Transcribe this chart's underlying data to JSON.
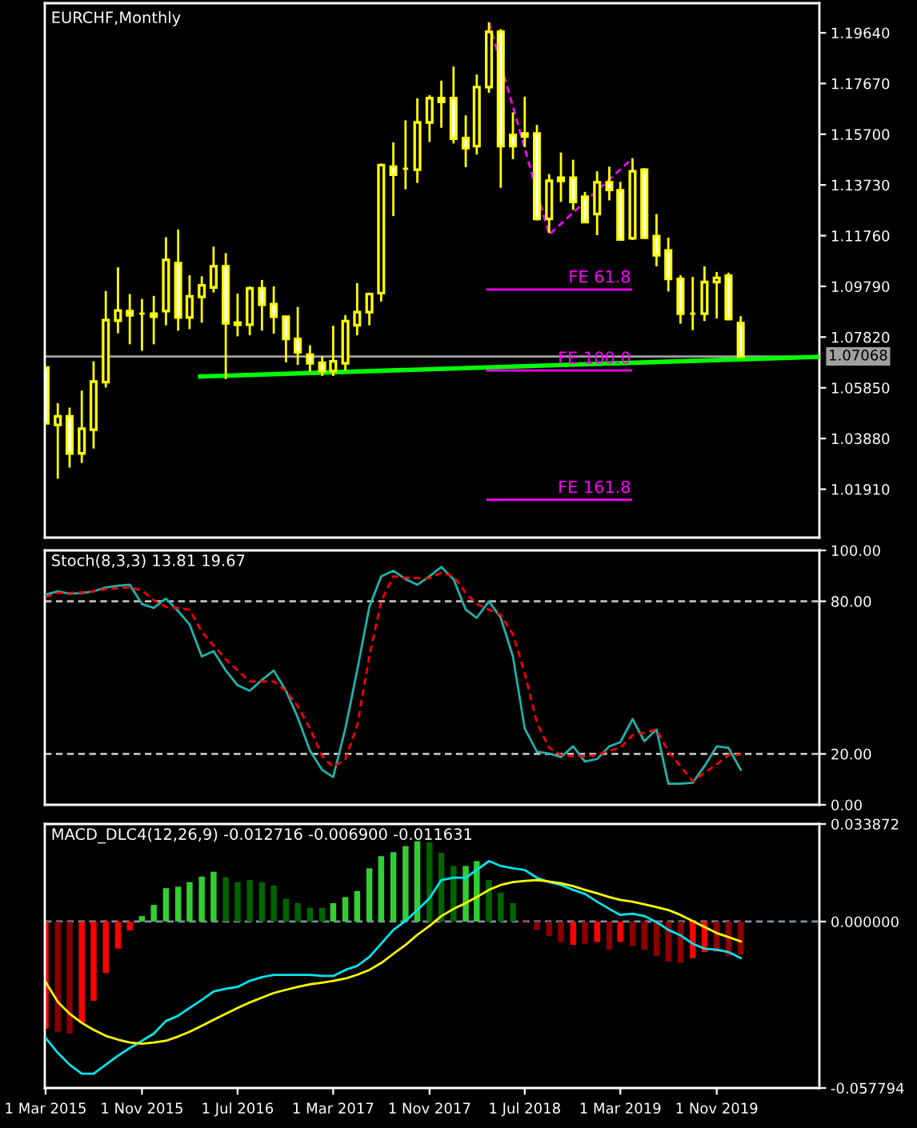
{
  "chart_data": [
    {
      "type": "candlestick",
      "title": "EURCHF,Monthly",
      "color": "#ffff00",
      "tick_labels": "y",
      "grid": false,
      "legend": false,
      "x": [
        "2015-03",
        "2015-04",
        "2015-05",
        "2015-06",
        "2015-07",
        "2015-08",
        "2015-09",
        "2015-10",
        "2015-11",
        "2015-12",
        "2016-01",
        "2016-02",
        "2016-03",
        "2016-04",
        "2016-05",
        "2016-06",
        "2016-07",
        "2016-08",
        "2016-09",
        "2016-10",
        "2016-11",
        "2016-12",
        "2017-01",
        "2017-02",
        "2017-03",
        "2017-04",
        "2017-05",
        "2017-06",
        "2017-07",
        "2017-08",
        "2017-09",
        "2017-10",
        "2017-11",
        "2017-12",
        "2018-01",
        "2018-02",
        "2018-03",
        "2018-04",
        "2018-05",
        "2018-06",
        "2018-07",
        "2018-08",
        "2018-09",
        "2018-10",
        "2018-11",
        "2018-12",
        "2019-01",
        "2019-02",
        "2019-03",
        "2019-04",
        "2019-05",
        "2019-06",
        "2019-07",
        "2019-08",
        "2019-09",
        "2019-10",
        "2019-11",
        "2019-12",
        "2020-01"
      ],
      "ohlc": [
        [
          1.0664,
          1.0664,
          1.0447,
          1.0447
        ],
        [
          1.0441,
          1.0525,
          1.0232,
          1.0474
        ],
        [
          1.0474,
          1.0508,
          1.0275,
          1.033
        ],
        [
          1.033,
          1.0574,
          1.0293,
          1.0426
        ],
        [
          1.0422,
          1.0688,
          1.0349,
          1.0609
        ],
        [
          1.0607,
          1.0961,
          1.0586,
          1.0848
        ],
        [
          1.0846,
          1.1053,
          1.0797,
          1.0885
        ],
        [
          1.0883,
          1.0949,
          1.0754,
          1.0867
        ],
        [
          1.0873,
          1.093,
          1.0729,
          1.0873
        ],
        [
          1.0873,
          1.0942,
          1.0754,
          1.0861
        ],
        [
          1.0883,
          1.117,
          1.0828,
          1.1082
        ],
        [
          1.1069,
          1.12,
          1.0807,
          1.0858
        ],
        [
          1.0858,
          1.1022,
          1.0813,
          1.094
        ],
        [
          1.0938,
          1.1018,
          1.0838,
          1.0983
        ],
        [
          1.0975,
          1.1133,
          1.0955,
          1.1057
        ],
        [
          1.1057,
          1.1108,
          1.0619,
          1.0836
        ],
        [
          1.0838,
          1.0951,
          1.0785,
          1.083
        ],
        [
          1.083,
          1.0979,
          1.0789,
          1.0971
        ],
        [
          1.0971,
          1.1004,
          1.0807,
          1.0908
        ],
        [
          1.091,
          1.0979,
          1.0795,
          1.0861
        ],
        [
          1.0861,
          1.0861,
          1.0684,
          1.0775
        ],
        [
          1.0775,
          1.0899,
          1.0674,
          1.0723
        ],
        [
          1.0713,
          1.075,
          1.0646,
          1.068
        ],
        [
          1.0682,
          1.0707,
          1.0631,
          1.065
        ],
        [
          1.065,
          1.0826,
          1.0631,
          1.0688
        ],
        [
          1.068,
          1.0867,
          1.0652,
          1.0844
        ],
        [
          1.0828,
          1.0992,
          1.0789,
          1.0879
        ],
        [
          1.0879,
          1.0955,
          1.0828,
          1.0949
        ],
        [
          1.0953,
          1.1456,
          1.092,
          1.145
        ],
        [
          1.1444,
          1.1538,
          1.1252,
          1.1413
        ],
        [
          1.1436,
          1.1624,
          1.1356,
          1.1436
        ],
        [
          1.1432,
          1.171,
          1.1381,
          1.1616
        ],
        [
          1.1616,
          1.1722,
          1.154,
          1.171
        ],
        [
          1.171,
          1.1778,
          1.1595,
          1.1696
        ],
        [
          1.171,
          1.1833,
          1.1534,
          1.1553
        ],
        [
          1.1555,
          1.1643,
          1.1442,
          1.1516
        ],
        [
          1.1524,
          1.1802,
          1.1491,
          1.1753
        ],
        [
          1.1753,
          1.2005,
          1.1731,
          1.1968
        ],
        [
          1.1968,
          1.1978,
          1.1362,
          1.1524
        ],
        [
          1.1567,
          1.1655,
          1.1473,
          1.1524
        ],
        [
          1.1573,
          1.1716,
          1.152,
          1.1561
        ],
        [
          1.1573,
          1.1606,
          1.1235,
          1.1241
        ],
        [
          1.1241,
          1.1415,
          1.1186,
          1.1389
        ],
        [
          1.1401,
          1.1499,
          1.1307,
          1.1389
        ],
        [
          1.1401,
          1.1471,
          1.1276,
          1.1307
        ],
        [
          1.1327,
          1.1346,
          1.1225,
          1.1229
        ],
        [
          1.126,
          1.1426,
          1.1178,
          1.1383
        ],
        [
          1.1383,
          1.1444,
          1.1313,
          1.1354
        ],
        [
          1.1352,
          1.1385,
          1.1159,
          1.1161
        ],
        [
          1.1166,
          1.1477,
          1.1159,
          1.1426
        ],
        [
          1.1432,
          1.1438,
          1.1164,
          1.1168
        ],
        [
          1.1174,
          1.126,
          1.1057,
          1.11
        ],
        [
          1.1118,
          1.1168,
          1.0959,
          1.1008
        ],
        [
          1.1008,
          1.1022,
          1.0834,
          1.0873
        ],
        [
          1.0873,
          1.1016,
          1.0809,
          1.0873
        ],
        [
          1.0873,
          1.1057,
          1.0844,
          1.0996
        ],
        [
          1.0996,
          1.1035,
          1.0854,
          1.1012
        ],
        [
          1.102,
          1.1032,
          1.0848,
          1.0852
        ],
        [
          1.0836,
          1.0863,
          1.0705,
          1.0707
        ]
      ],
      "series": [
        {
          "type": "line",
          "color": "#00ff00",
          "x": [
            "2016-03-28",
            "2020-07-19"
          ],
          "values": [
            1.0629,
            1.0705
          ]
        },
        {
          "type": "line",
          "color": "#ff00ff",
          "x": [
            "2018-03-28",
            "2019-03-28"
          ],
          "values": [
            1.0967,
            1.0967
          ]
        },
        {
          "type": "line",
          "color": "#ff00ff",
          "x": [
            "2018-03-28",
            "2019-03-28"
          ],
          "values": [
            1.0652,
            1.0652
          ]
        },
        {
          "type": "line",
          "color": "#ff00ff",
          "x": [
            "2018-03-28",
            "2019-03-28"
          ],
          "values": [
            1.015,
            1.015
          ]
        },
        {
          "type": "line",
          "color": "#ff00ff",
          "line_style": "dashed",
          "x": [
            "2018-04",
            "2018-09",
            "2019-04"
          ],
          "values": [
            1.2005,
            1.118,
            1.1477
          ]
        }
      ],
      "annotations": [
        {
          "text": "FE 61.8",
          "x": "2019-03-28",
          "y": 1.0967
        },
        {
          "text": "FE 100.0",
          "x": "2019-03-28",
          "y": 1.0652
        },
        {
          "text": "FE 161.8",
          "x": "2019-03-28",
          "y": 1.015
        }
      ],
      "ref_lines": [
        {
          "axis": "y",
          "value": 1.07068,
          "label": "1.07068",
          "color": "#a0a0a0"
        }
      ],
      "xlim": [
        "2015-02-27",
        "2020-07-19"
      ],
      "ylim": [
        1.0003,
        1.2079
      ],
      "yticks": [
        {
          "value": 1.0191,
          "label": "1.01910"
        },
        {
          "value": 1.0388,
          "label": "1.03880"
        },
        {
          "value": 1.0585,
          "label": "1.05850"
        },
        {
          "value": 1.0782,
          "label": "1.07820"
        },
        {
          "value": 1.0979,
          "label": "1.09790"
        },
        {
          "value": 1.1176,
          "label": "1.11760"
        },
        {
          "value": 1.1373,
          "label": "1.13730"
        },
        {
          "value": 1.157,
          "label": "1.15700"
        },
        {
          "value": 1.1767,
          "label": "1.17670"
        },
        {
          "value": 1.1964,
          "label": "1.19640"
        }
      ]
    },
    {
      "type": "line",
      "title": "Stoch(8,3,3) 13.81 19.67",
      "tick_labels": "y",
      "grid": false,
      "legend": false,
      "x": [
        "2015-03",
        "2015-04",
        "2015-05",
        "2015-06",
        "2015-07",
        "2015-08",
        "2015-09",
        "2015-10",
        "2015-11",
        "2015-12",
        "2016-01",
        "2016-02",
        "2016-03",
        "2016-04",
        "2016-05",
        "2016-06",
        "2016-07",
        "2016-08",
        "2016-09",
        "2016-10",
        "2016-11",
        "2016-12",
        "2017-01",
        "2017-02",
        "2017-03",
        "2017-04",
        "2017-05",
        "2017-06",
        "2017-07",
        "2017-08",
        "2017-09",
        "2017-10",
        "2017-11",
        "2017-12",
        "2018-01",
        "2018-02",
        "2018-03",
        "2018-04",
        "2018-05",
        "2018-06",
        "2018-07",
        "2018-08",
        "2018-09",
        "2018-10",
        "2018-11",
        "2018-12",
        "2019-01",
        "2019-02",
        "2019-03",
        "2019-04",
        "2019-05",
        "2019-06",
        "2019-07",
        "2019-08",
        "2019-09",
        "2019-10",
        "2019-11",
        "2019-12",
        "2020-01"
      ],
      "series": [
        {
          "type": "line",
          "color": "#20b2aa",
          "values": [
            82.6,
            83.9,
            83.0,
            83.2,
            83.9,
            85.4,
            86.1,
            86.5,
            78.9,
            77.4,
            81.1,
            76.1,
            70.9,
            58.3,
            60.4,
            52.8,
            47.0,
            44.8,
            49.1,
            52.8,
            44.8,
            34.3,
            21.3,
            13.7,
            10.9,
            30.0,
            52.8,
            77.8,
            89.8,
            92.0,
            88.7,
            86.5,
            89.8,
            93.5,
            88.7,
            76.7,
            73.5,
            80.0,
            73.5,
            58.3,
            30.0,
            20.9,
            20.2,
            18.7,
            23.0,
            17.0,
            18.0,
            23.0,
            24.6,
            33.7,
            25.0,
            29.6,
            8.3,
            8.3,
            8.7,
            15.2,
            23.0,
            22.4,
            13.8
          ]
        },
        {
          "type": "line",
          "color": "#ff0000",
          "line_style": "dashed",
          "values": [
            81.7,
            83.3,
            83.3,
            83.5,
            83.9,
            84.8,
            85.2,
            85.4,
            84.3,
            80.4,
            77.8,
            77.4,
            76.7,
            68.0,
            62.6,
            57.2,
            52.8,
            48.5,
            48.5,
            48.5,
            44.8,
            38.7,
            30.0,
            19.1,
            14.8,
            18.0,
            31.1,
            58.3,
            80.0,
            89.8,
            89.3,
            89.1,
            89.1,
            91.3,
            89.8,
            83.3,
            78.9,
            76.7,
            74.6,
            67.0,
            51.7,
            32.2,
            22.4,
            19.6,
            19.1,
            19.1,
            19.6,
            21.3,
            22.4,
            27.4,
            28.3,
            29.6,
            20.9,
            15.2,
            9.3,
            12.6,
            15.9,
            19.6,
            19.7
          ]
        }
      ],
      "ref_lines": [
        {
          "axis": "y",
          "value": 80,
          "color": "#c0c0c0",
          "line_style": "dashed"
        },
        {
          "axis": "y",
          "value": 20,
          "color": "#c0c0c0",
          "line_style": "dashed"
        }
      ],
      "xlim": [
        "2015-02-27",
        "2020-07-19"
      ],
      "ylim": [
        0,
        100
      ],
      "yticks": [
        {
          "value": 0,
          "label": "0.00"
        },
        {
          "value": 20,
          "label": "20.00"
        },
        {
          "value": 80,
          "label": "80.00"
        },
        {
          "value": 100,
          "label": "100.00"
        }
      ]
    },
    {
      "type": "bar",
      "title": "MACD_DLC4(12,26,9) -0.012716 -0.006900 -0.011631",
      "grid": false,
      "legend": false,
      "x": [
        "2015-03",
        "2015-04",
        "2015-05",
        "2015-06",
        "2015-07",
        "2015-08",
        "2015-09",
        "2015-10",
        "2015-11",
        "2015-12",
        "2016-01",
        "2016-02",
        "2016-03",
        "2016-04",
        "2016-05",
        "2016-06",
        "2016-07",
        "2016-08",
        "2016-09",
        "2016-10",
        "2016-11",
        "2016-12",
        "2017-01",
        "2017-02",
        "2017-03",
        "2017-04",
        "2017-05",
        "2017-06",
        "2017-07",
        "2017-08",
        "2017-09",
        "2017-10",
        "2017-11",
        "2017-12",
        "2018-01",
        "2018-02",
        "2018-03",
        "2018-04",
        "2018-05",
        "2018-06",
        "2018-07",
        "2018-08",
        "2018-09",
        "2018-10",
        "2018-11",
        "2018-12",
        "2019-01",
        "2019-02",
        "2019-03",
        "2019-04",
        "2019-05",
        "2019-06",
        "2019-07",
        "2019-08",
        "2019-09",
        "2019-10",
        "2019-11",
        "2019-12",
        "2020-01"
      ],
      "series": [
        {
          "type": "bar",
          "colors": [
            "#ff0000",
            "#8b0000",
            "#8b0000",
            "#ff0000",
            "#ff0000",
            "#ff0000",
            "#ff0000",
            "#ff0000",
            "#32cd32",
            "#32cd32",
            "#32cd32",
            "#32cd32",
            "#32cd32",
            "#32cd32",
            "#32cd32",
            "#006400",
            "#006400",
            "#006400",
            "#006400",
            "#006400",
            "#006400",
            "#006400",
            "#006400",
            "#006400",
            "#32cd32",
            "#32cd32",
            "#32cd32",
            "#32cd32",
            "#32cd32",
            "#32cd32",
            "#32cd32",
            "#32cd32",
            "#006400",
            "#006400",
            "#006400",
            "#32cd32",
            "#32cd32",
            "#006400",
            "#006400",
            "#006400",
            "#8b0000",
            "#8b0000",
            "#8b0000",
            "#8b0000",
            "#ff0000",
            "#8b0000",
            "#ff0000",
            "#8b0000",
            "#ff0000",
            "#8b0000",
            "#8b0000",
            "#8b0000",
            "#8b0000",
            "#8b0000",
            "#ff0000",
            "#ff0000",
            "#8b0000",
            "#8b0000",
            "#8b0000"
          ],
          "values": [
            -0.0372,
            -0.0383,
            -0.0389,
            -0.0352,
            -0.0275,
            -0.0179,
            -0.0094,
            -0.0031,
            0.0019,
            0.0058,
            0.0116,
            0.0121,
            0.0137,
            0.0156,
            0.0173,
            0.0154,
            0.0137,
            0.0144,
            0.0137,
            0.0125,
            0.0079,
            0.0064,
            0.0048,
            0.0048,
            0.0064,
            0.0085,
            0.0106,
            0.0185,
            0.0227,
            0.0241,
            0.0262,
            0.0279,
            0.0275,
            0.0239,
            0.0193,
            0.0193,
            0.021,
            0.0144,
            0.01,
            0.0064,
            -0.0004,
            -0.0029,
            -0.005,
            -0.0071,
            -0.0081,
            -0.0077,
            -0.0071,
            -0.0098,
            -0.0071,
            -0.0085,
            -0.0098,
            -0.0119,
            -0.0139,
            -0.0144,
            -0.0127,
            -0.0106,
            -0.0106,
            -0.0119,
            -0.0116
          ]
        },
        {
          "type": "line",
          "color": "#00e5ee",
          "values": [
            -0.0404,
            -0.0456,
            -0.0497,
            -0.0528,
            -0.0528,
            -0.0497,
            -0.0466,
            -0.0439,
            -0.0414,
            -0.0389,
            -0.0345,
            -0.0327,
            -0.03,
            -0.0272,
            -0.0243,
            -0.0233,
            -0.0227,
            -0.0206,
            -0.0193,
            -0.0185,
            -0.0185,
            -0.0185,
            -0.0185,
            -0.0189,
            -0.0189,
            -0.0168,
            -0.0154,
            -0.0123,
            -0.0077,
            -0.0029,
            0.0002,
            0.004,
            0.0081,
            0.0144,
            0.0152,
            0.0152,
            0.0179,
            0.021,
            0.0193,
            0.0185,
            0.0179,
            0.0152,
            0.0137,
            0.0127,
            0.011,
            0.0096,
            0.0069,
            0.0044,
            0.0023,
            0.0027,
            0.0019,
            -0.0002,
            -0.0029,
            -0.0048,
            -0.0077,
            -0.0094,
            -0.0098,
            -0.0106,
            -0.0127
          ]
        },
        {
          "type": "line",
          "color": "#ffff00",
          "values": [
            -0.021,
            -0.0279,
            -0.032,
            -0.0352,
            -0.0376,
            -0.0397,
            -0.041,
            -0.042,
            -0.0424,
            -0.042,
            -0.0414,
            -0.0399,
            -0.0383,
            -0.0362,
            -0.0341,
            -0.032,
            -0.03,
            -0.0281,
            -0.0264,
            -0.0248,
            -0.0237,
            -0.0227,
            -0.0218,
            -0.0212,
            -0.0206,
            -0.0198,
            -0.0185,
            -0.0168,
            -0.0144,
            -0.0112,
            -0.0081,
            -0.0046,
            -0.0015,
            0.0019,
            0.0044,
            0.0064,
            0.0085,
            0.011,
            0.0127,
            0.0137,
            0.0141,
            0.0144,
            0.0139,
            0.0133,
            0.0123,
            0.011,
            0.0098,
            0.0085,
            0.0075,
            0.0069,
            0.006,
            0.005,
            0.004,
            0.0023,
            0.0002,
            -0.0019,
            -0.004,
            -0.0054,
            -0.0069
          ]
        }
      ],
      "ref_lines": [
        {
          "axis": "y",
          "value": 0,
          "color": "#7f8fa6",
          "line_style": "dashed"
        }
      ],
      "xlim": [
        "2015-02-27",
        "2020-07-19"
      ],
      "ylim": [
        -0.057794,
        0.033872
      ],
      "yticks": [
        {
          "value": -0.057794,
          "label": "-0.057794"
        },
        {
          "value": 0,
          "label": "0.000000"
        },
        {
          "value": 0.033872,
          "label": "0.033872"
        }
      ],
      "xticks": [
        {
          "value": "2015-03",
          "label": "1 Mar 2015"
        },
        {
          "value": "2015-11",
          "label": "1 Nov 2015"
        },
        {
          "value": "2016-07",
          "label": "1 Jul 2016"
        },
        {
          "value": "2017-03",
          "label": "1 Mar 2017"
        },
        {
          "value": "2017-11",
          "label": "1 Nov 2017"
        },
        {
          "value": "2018-07",
          "label": "1 Jul 2018"
        },
        {
          "value": "2019-03",
          "label": "1 Mar 2019"
        },
        {
          "value": "2019-11",
          "label": "1 Nov 2019"
        }
      ]
    }
  ]
}
